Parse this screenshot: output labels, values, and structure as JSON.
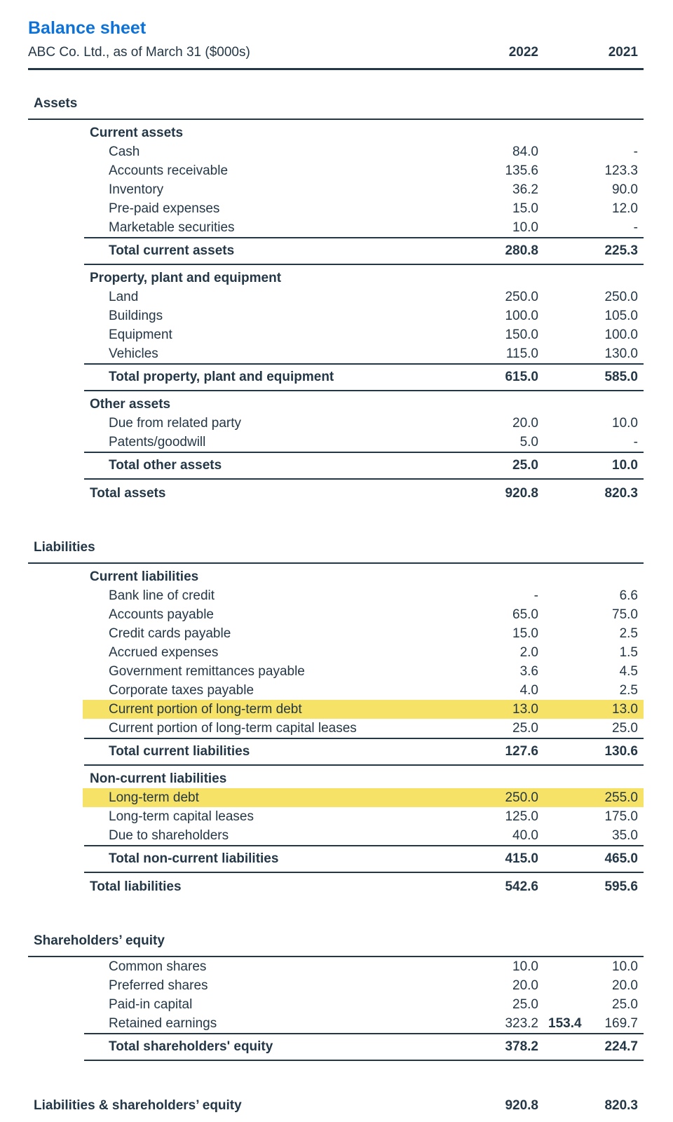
{
  "page": {
    "title": "Balance sheet",
    "subtitle": "ABC Co. Ltd., as of March 31 ($000s)",
    "col_headers": [
      "2022",
      "2021"
    ]
  },
  "colors": {
    "title_blue": "#0d72d8",
    "text_ink": "#243746",
    "highlight_yellow": "#f6e266"
  },
  "sections": [
    {
      "name": "Assets",
      "groups": [
        {
          "header": "Current assets",
          "items": [
            {
              "label": "Cash",
              "v2022": "84.0",
              "v2021": "-"
            },
            {
              "label": "Accounts receivable",
              "v2022": "135.6",
              "v2021": "123.3"
            },
            {
              "label": "Inventory",
              "v2022": "36.2",
              "v2021": "90.0"
            },
            {
              "label": "Pre-paid expenses",
              "v2022": "15.0",
              "v2021": "12.0"
            },
            {
              "label": "Marketable securities",
              "v2022": "10.0",
              "v2021": "-"
            }
          ],
          "total": {
            "label": "Total current assets",
            "v2022": "280.8",
            "v2021": "225.3"
          }
        },
        {
          "header": "Property, plant and equipment",
          "items": [
            {
              "label": "Land",
              "v2022": "250.0",
              "v2021": "250.0"
            },
            {
              "label": "Buildings",
              "v2022": "100.0",
              "v2021": "105.0"
            },
            {
              "label": "Equipment",
              "v2022": "150.0",
              "v2021": "100.0"
            },
            {
              "label": "Vehicles",
              "v2022": "115.0",
              "v2021": "130.0"
            }
          ],
          "total": {
            "label": "Total property, plant and equipment",
            "v2022": "615.0",
            "v2021": "585.0"
          }
        },
        {
          "header": "Other assets",
          "items": [
            {
              "label": "Due from related party",
              "v2022": "20.0",
              "v2021": "10.0"
            },
            {
              "label": "Patents/goodwill",
              "v2022": "5.0",
              "v2021": "-"
            }
          ],
          "total": {
            "label": "Total other assets",
            "v2022": "25.0",
            "v2021": "10.0"
          }
        }
      ],
      "total": {
        "label": "Total assets",
        "v2022": "920.8",
        "v2021": "820.3"
      }
    },
    {
      "name": "Liabilities",
      "groups": [
        {
          "header": "Current liabilities",
          "items": [
            {
              "label": "Bank line of credit",
              "v2022": "-",
              "v2021": "6.6"
            },
            {
              "label": "Accounts payable",
              "v2022": "65.0",
              "v2021": "75.0"
            },
            {
              "label": "Credit cards payable",
              "v2022": "15.0",
              "v2021": "2.5"
            },
            {
              "label": "Accrued expenses",
              "v2022": "2.0",
              "v2021": "1.5"
            },
            {
              "label": "Government remittances payable",
              "v2022": "3.6",
              "v2021": "4.5"
            },
            {
              "label": "Corporate taxes payable",
              "v2022": "4.0",
              "v2021": "2.5"
            },
            {
              "label": "Current portion of long-term debt",
              "v2022": "13.0",
              "v2021": "13.0",
              "highlight": true
            },
            {
              "label": "Current portion of long-term capital leases",
              "v2022": "25.0",
              "v2021": "25.0"
            }
          ],
          "total": {
            "label": "Total current liabilities",
            "v2022": "127.6",
            "v2021": "130.6"
          }
        },
        {
          "header": "Non-current liabilities",
          "items": [
            {
              "label": "Long-term debt",
              "v2022": "250.0",
              "v2021": "255.0",
              "highlight": true
            },
            {
              "label": "Long-term capital leases",
              "v2022": "125.0",
              "v2021": "175.0"
            },
            {
              "label": "Due to shareholders",
              "v2022": "40.0",
              "v2021": "35.0"
            }
          ],
          "total": {
            "label": "Total non-current liabilities",
            "v2022": "415.0",
            "v2021": "465.0"
          }
        }
      ],
      "total": {
        "label": "Total liabilities",
        "v2022": "542.6",
        "v2021": "595.6"
      }
    },
    {
      "name": "Shareholders’ equity",
      "groups": [
        {
          "header": "",
          "items": [
            {
              "label": "Common shares",
              "v2022": "10.0",
              "v2021": "10.0"
            },
            {
              "label": "Preferred shares",
              "v2022": "20.0",
              "v2021": "20.0"
            },
            {
              "label": "Paid-in capital",
              "v2022": "25.0",
              "v2021": "25.0"
            },
            {
              "label": "Retained earnings",
              "v2022": "323.2",
              "extra": "153.4",
              "v2021": "169.7"
            }
          ],
          "total": {
            "label": "Total shareholders' equity",
            "v2022": "378.2",
            "v2021": "224.7"
          }
        }
      ],
      "total": null
    }
  ],
  "grand_total": {
    "label": "Liabilities & shareholders’ equity",
    "v2022": "920.8",
    "v2021": "820.3"
  }
}
